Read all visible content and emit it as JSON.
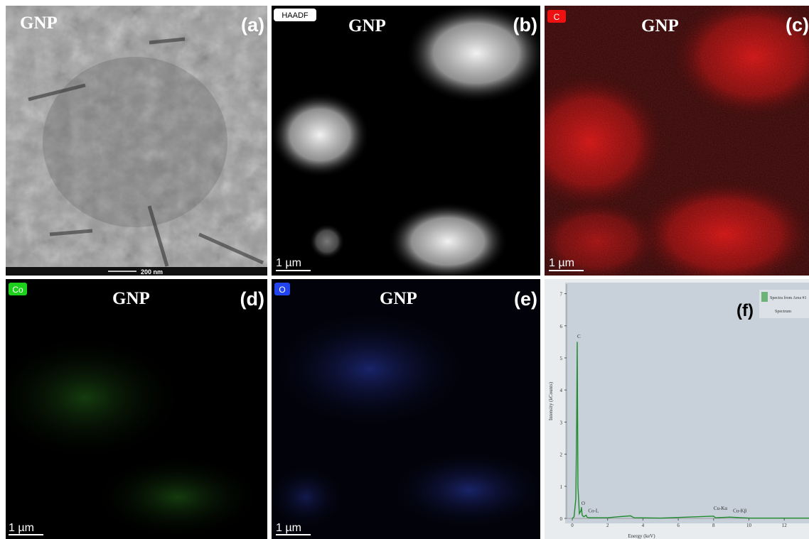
{
  "panels": [
    {
      "label": "(a)",
      "title": "GNP",
      "scale_bar": "200 nm"
    },
    {
      "label": "(b)",
      "title": "GNP",
      "badge": "HAADF",
      "scale_bar": "1 µm"
    },
    {
      "label": "(c)",
      "title": "GNP",
      "badge": "C",
      "scale_bar": "1 µm"
    },
    {
      "label": "(d)",
      "title": "GNP",
      "badge": "Co",
      "scale_bar": "1 µm"
    },
    {
      "label": "(e)",
      "title": "GNP",
      "badge": "O",
      "scale_bar": "1 µm"
    },
    {
      "label": "(f)"
    }
  ],
  "chart_data": {
    "type": "line",
    "xlabel": "Energy (keV)",
    "ylabel": "Intensity (kCounts)",
    "x": [
      0,
      0.1,
      0.2,
      0.25,
      0.28,
      0.32,
      0.4,
      0.5,
      0.52,
      0.56,
      0.65,
      0.78,
      0.85,
      1,
      2,
      2.6,
      3.3,
      3.5,
      5,
      8.0,
      8.1,
      8.9,
      10,
      12,
      13.4
    ],
    "series": [
      {
        "name": "Spectra from Area #1",
        "color": "#1f8a2e",
        "values": [
          0,
          0.05,
          0.6,
          3,
          5.5,
          1,
          0.15,
          0.25,
          0.35,
          0.1,
          0.05,
          0.1,
          0.03,
          0.02,
          0.02,
          0.05,
          0.08,
          0.02,
          0.01,
          0.07,
          0.02,
          0.04,
          0.01,
          0.01,
          0.01
        ]
      }
    ],
    "legend_subtitle": "Spectrum",
    "annotations": [
      {
        "text": "C",
        "x": 0.28,
        "y": 5.55
      },
      {
        "text": "O",
        "x": 0.52,
        "y": 0.35
      },
      {
        "text": "Co-L",
        "x": 0.9,
        "y": 0.12
      },
      {
        "text": "Cu-Kα",
        "x": 8.0,
        "y": 0.2
      },
      {
        "text": "Cu-Kβ",
        "x": 9.1,
        "y": 0.12
      }
    ],
    "xlim": [
      0,
      13.4
    ],
    "ylim": [
      0,
      7.3
    ],
    "xticks": [
      0,
      2,
      4,
      6,
      8,
      10,
      12
    ],
    "yticks": [
      0,
      1,
      2,
      3,
      4,
      5,
      6,
      7
    ]
  }
}
